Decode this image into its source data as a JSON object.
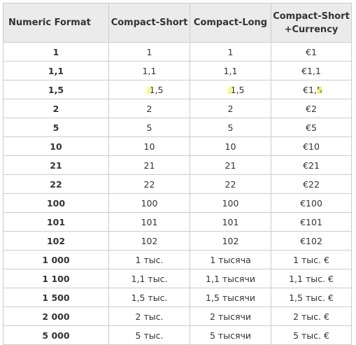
{
  "header": {
    "col1": "Numeric Format",
    "col2": "Compact-Short",
    "col3": "Compact-Long",
    "col4_line1": "Compact-Short",
    "col4_line2": "+Currency"
  },
  "rows": [
    [
      "1",
      "1",
      "1",
      "€1"
    ],
    [
      "1,1",
      "1,1",
      "1,1",
      "€1,1"
    ],
    [
      "1,5",
      "1,5",
      "1,5",
      "€1,5"
    ],
    [
      "2",
      "2",
      "2",
      "€2"
    ],
    [
      "5",
      "5",
      "5",
      "€5"
    ],
    [
      "10",
      "10",
      "10",
      "€10"
    ],
    [
      "21",
      "21",
      "21",
      "€21"
    ],
    [
      "22",
      "22",
      "22",
      "€22"
    ],
    [
      "100",
      "100",
      "100",
      "€100"
    ],
    [
      "101",
      "101",
      "101",
      "€101"
    ],
    [
      "102",
      "102",
      "102",
      "€102"
    ],
    [
      "1 000",
      "1 тыс.",
      "1 тысяча",
      "1 тыс. €"
    ],
    [
      "1 100",
      "1,1 тыс.",
      "1,1 тысячи",
      "1,1 тыс. €"
    ],
    [
      "1 500",
      "1,5 тыс.",
      "1,5 тысячи",
      "1,5 тыс. €"
    ],
    [
      "2 000",
      "2 тыс.",
      "2 тысячи",
      "2 тыс. €"
    ],
    [
      "5 000",
      "5 тыс.",
      "5 тысячи",
      "5 тыс. €"
    ]
  ],
  "highlight_color": "#f7ff2b"
}
